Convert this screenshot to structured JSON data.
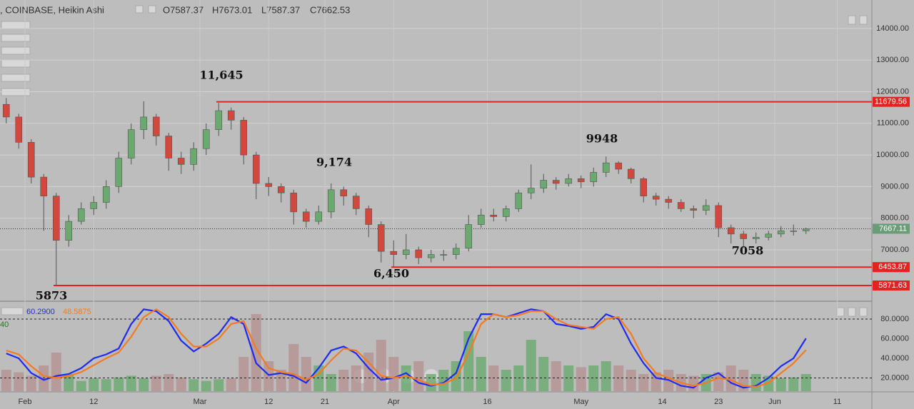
{
  "header": {
    "symbol": ", COINBASE, Heikin Ashi",
    "ohlc": [
      "O7587.37",
      "H7673.01",
      "L7587.37",
      "C7662.53"
    ]
  },
  "chart_data": [
    {
      "type": "candlestick",
      "dates": [
        "Jan 29",
        "Jan 31",
        "Feb 2",
        "Feb 4",
        "Feb 6",
        "Feb 8",
        "Feb 10",
        "Feb 12",
        "Feb 14",
        "Feb 16",
        "Feb 18",
        "Feb 20",
        "Feb 22",
        "Feb 24",
        "Feb 26",
        "Feb 28",
        "Mar 2",
        "Mar 4",
        "Mar 6",
        "Mar 8",
        "Mar 10",
        "Mar 12",
        "Mar 14",
        "Mar 16",
        "Mar 18",
        "Mar 20",
        "Mar 22",
        "Mar 24",
        "Mar 26",
        "Mar 28",
        "Mar 30",
        "Apr 1",
        "Apr 3",
        "Apr 5",
        "Apr 7",
        "Apr 9",
        "Apr 11",
        "Apr 13",
        "Apr 15",
        "Apr 17",
        "Apr 19",
        "Apr 21",
        "Apr 23",
        "Apr 25",
        "Apr 27",
        "Apr 29",
        "May 1",
        "May 3",
        "May 5",
        "May 7",
        "May 9",
        "May 11",
        "May 13",
        "May 15",
        "May 17",
        "May 19",
        "May 21",
        "May 23",
        "May 25",
        "May 27",
        "May 29",
        "May 31",
        "Jun 2",
        "Jun 4",
        "Jun 6"
      ],
      "open": [
        11600,
        11200,
        10400,
        9300,
        8700,
        7300,
        7900,
        8300,
        8500,
        9000,
        9900,
        10800,
        11200,
        10600,
        9900,
        9700,
        10200,
        10800,
        11400,
        11100,
        10000,
        9100,
        9000,
        8800,
        8200,
        7900,
        8200,
        8900,
        8700,
        8300,
        7800,
        6950,
        6850,
        7000,
        6750,
        6850,
        6850,
        7050,
        7800,
        8100,
        8050,
        8300,
        8800,
        8950,
        9200,
        9100,
        9250,
        9150,
        9450,
        9750,
        9550,
        9250,
        8700,
        8600,
        8500,
        8300,
        8250,
        8400,
        7700,
        7500,
        7350,
        7400,
        7500,
        7600,
        7600
      ],
      "high": [
        11800,
        11300,
        10500,
        9400,
        8800,
        8100,
        8500,
        8700,
        9200,
        10100,
        11000,
        11700,
        11300,
        10700,
        10100,
        10400,
        11000,
        11645,
        11500,
        11200,
        10100,
        9300,
        9100,
        8900,
        8300,
        8400,
        9100,
        9000,
        8800,
        8400,
        7900,
        7300,
        7500,
        7100,
        7000,
        7000,
        7200,
        8100,
        8300,
        8300,
        8400,
        8900,
        9700,
        9400,
        9300,
        9400,
        9350,
        9600,
        9948,
        9800,
        9600,
        9300,
        8800,
        8700,
        8600,
        8400,
        8600,
        8500,
        7800,
        7600,
        7550,
        7600,
        7750,
        7800,
        7700
      ],
      "low": [
        11000,
        10200,
        9100,
        7600,
        5873,
        7100,
        7800,
        8100,
        8300,
        8800,
        9700,
        10500,
        10300,
        9500,
        9400,
        9500,
        10000,
        10600,
        10800,
        9700,
        8600,
        8700,
        8500,
        7800,
        7700,
        7800,
        8000,
        8400,
        8100,
        7400,
        6600,
        6450,
        6700,
        6550,
        6600,
        6650,
        6700,
        6950,
        7700,
        7900,
        7900,
        8200,
        8600,
        8800,
        8900,
        9000,
        8950,
        9000,
        9300,
        9400,
        9100,
        8500,
        8400,
        8300,
        8200,
        8000,
        8100,
        7400,
        7200,
        7058,
        7200,
        7300,
        7400,
        7450,
        7500
      ],
      "close": [
        11200,
        10400,
        9300,
        8700,
        7300,
        7900,
        8300,
        8500,
        9000,
        9900,
        10800,
        11200,
        10600,
        9900,
        9700,
        10200,
        10800,
        11400,
        11100,
        10000,
        9100,
        9000,
        8800,
        8200,
        7900,
        8200,
        8900,
        8700,
        8300,
        7800,
        6950,
        6850,
        7000,
        6750,
        6850,
        6850,
        7050,
        7800,
        8100,
        8050,
        8300,
        8800,
        8950,
        9200,
        9100,
        9250,
        9150,
        9450,
        9750,
        9550,
        9250,
        8700,
        8600,
        8500,
        8300,
        8250,
        8400,
        7700,
        7500,
        7350,
        7400,
        7500,
        7600,
        7600,
        7660
      ],
      "up_color": "#6aaa6e",
      "down_color": "#d2483c",
      "ylim": [
        5420,
        14900
      ],
      "yticks": [
        {
          "value": 7000,
          "label": "7000.00"
        },
        {
          "value": 8000,
          "label": "8000.00"
        },
        {
          "value": 9000,
          "label": "9000.00"
        },
        {
          "value": 10000,
          "label": "10000.00"
        },
        {
          "value": 11000,
          "label": "11000.00"
        },
        {
          "value": 12000,
          "label": "12000.00"
        },
        {
          "value": 13000,
          "label": "13000.00"
        },
        {
          "value": 14000,
          "label": "14000.00"
        }
      ],
      "xticks": [
        {
          "value": "Feb 1",
          "label": "Feb"
        },
        {
          "value": "Feb 12",
          "label": "12"
        },
        {
          "value": "Mar 1",
          "label": "Mar"
        },
        {
          "value": "Mar 12",
          "label": "12"
        },
        {
          "value": "Mar 21",
          "label": "21"
        },
        {
          "value": "Apr 1",
          "label": "Apr"
        },
        {
          "value": "Apr 16",
          "label": "16"
        },
        {
          "value": "May 1",
          "label": "May"
        },
        {
          "value": "May 14",
          "label": "14"
        },
        {
          "value": "May 23",
          "label": "23"
        },
        {
          "value": "Jun 1",
          "label": "Jun"
        },
        {
          "value": "Jun 11",
          "label": "11"
        }
      ],
      "grid": true,
      "levels": [
        {
          "value": 11679.56,
          "label": "11679.56"
        },
        {
          "value": 6453.87,
          "label": "6453.87"
        },
        {
          "value": 5871.63,
          "label": "5871.63"
        }
      ],
      "level_color": "#e52222",
      "last_price": {
        "value": 7667.11,
        "label": "7667.11"
      },
      "annotations": [
        "11,645",
        "9,174",
        "6,450",
        "5873",
        "9948",
        "7058"
      ]
    },
    {
      "type": "stochastic",
      "series": [
        {
          "color": "#1f2bf0",
          "value_label": "60.2900",
          "values": [
            45,
            40,
            25,
            18,
            22,
            24,
            30,
            40,
            44,
            50,
            75,
            90,
            88,
            78,
            58,
            47,
            55,
            65,
            82,
            75,
            35,
            23,
            25,
            22,
            15,
            30,
            48,
            52,
            45,
            30,
            18,
            20,
            25,
            15,
            12,
            15,
            25,
            60,
            85,
            85,
            82,
            86,
            90,
            88,
            75,
            73,
            70,
            72,
            85,
            80,
            55,
            35,
            20,
            18,
            12,
            10,
            20,
            25,
            15,
            10,
            12,
            20,
            32,
            40,
            60.29
          ]
        },
        {
          "color": "#f47b20",
          "value_label": "48.5875",
          "values": [
            48,
            44,
            32,
            22,
            20,
            22,
            26,
            33,
            40,
            46,
            62,
            82,
            90,
            82,
            65,
            52,
            52,
            60,
            75,
            78,
            50,
            30,
            26,
            24,
            18,
            24,
            38,
            50,
            48,
            36,
            22,
            20,
            22,
            18,
            13,
            14,
            20,
            45,
            75,
            85,
            82,
            84,
            88,
            88,
            80,
            74,
            72,
            70,
            80,
            82,
            65,
            40,
            25,
            20,
            15,
            12,
            15,
            20,
            18,
            12,
            11,
            15,
            25,
            35,
            48.5875
          ]
        }
      ],
      "volume": [
        25,
        22,
        18,
        30,
        45,
        20,
        12,
        15,
        14,
        16,
        18,
        15,
        18,
        20,
        16,
        14,
        12,
        14,
        15,
        40,
        90,
        35,
        25,
        55,
        40,
        30,
        20,
        25,
        30,
        45,
        60,
        40,
        30,
        35,
        20,
        25,
        35,
        70,
        40,
        30,
        25,
        30,
        60,
        40,
        35,
        30,
        28,
        30,
        35,
        30,
        25,
        20,
        22,
        25,
        20,
        18,
        20,
        22,
        30,
        25,
        20,
        18,
        15,
        16,
        20
      ],
      "volume_label": "40",
      "volume_lim": [
        0,
        100
      ],
      "ylim": [
        0,
        96
      ],
      "yticks": [
        {
          "value": 20,
          "label": "20.0000"
        },
        {
          "value": 40,
          "label": "40.0000"
        },
        {
          "value": 60,
          "label": "60.0000"
        },
        {
          "value": 80,
          "label": "80.0000"
        }
      ],
      "dashed_levels": [
        20,
        80
      ]
    }
  ]
}
